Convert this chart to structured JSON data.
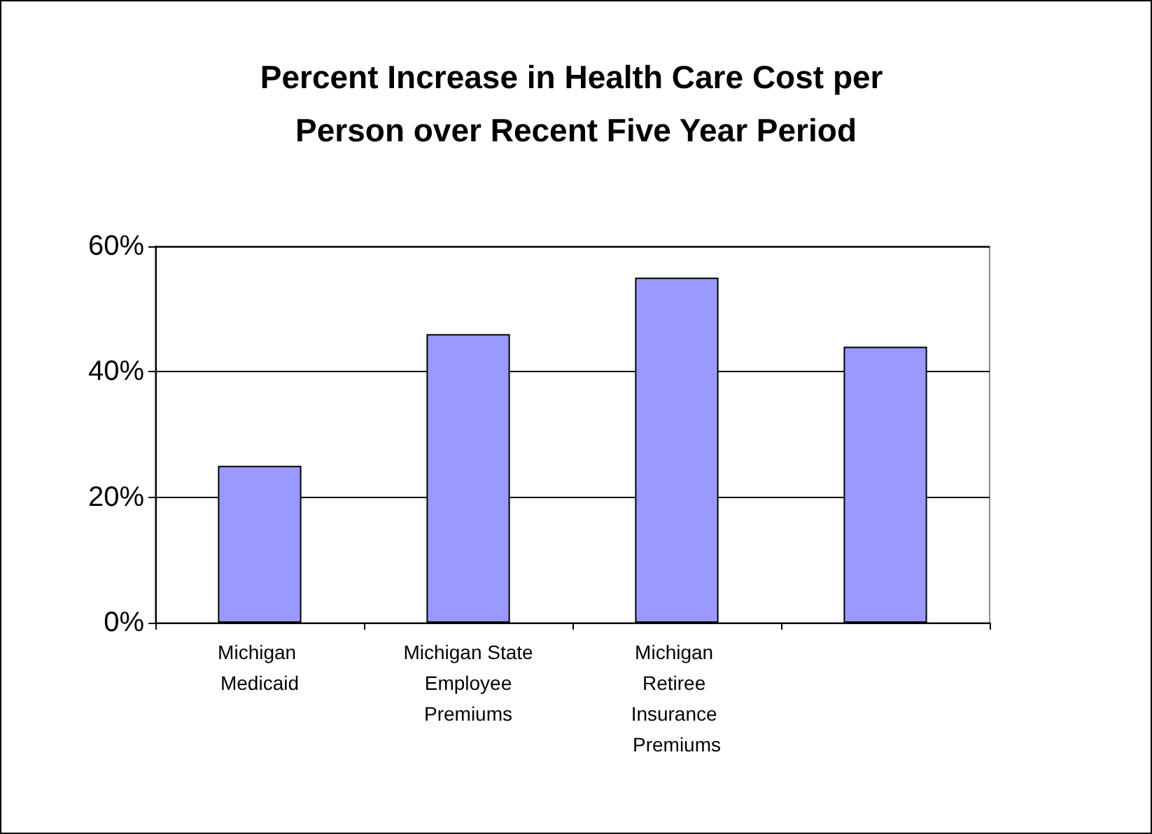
{
  "chart_data": {
    "type": "bar",
    "title": "Percent Increase in Health Care Cost per Person over Recent Five Year Period",
    "categories": [
      "Michigan Medicaid",
      "Michigan State Employee Premiums",
      "Michigan Retiree Insurance Premiums",
      null
    ],
    "values": [
      25,
      46,
      55,
      44
    ],
    "color": "#9999ff",
    "ylim": [
      0,
      60
    ],
    "yticks": [
      {
        "value": 0,
        "label": "0%"
      },
      {
        "value": 20,
        "label": "20%"
      },
      {
        "value": 40,
        "label": "40%"
      },
      {
        "value": 60,
        "label": "60%"
      }
    ],
    "grid": "y"
  }
}
